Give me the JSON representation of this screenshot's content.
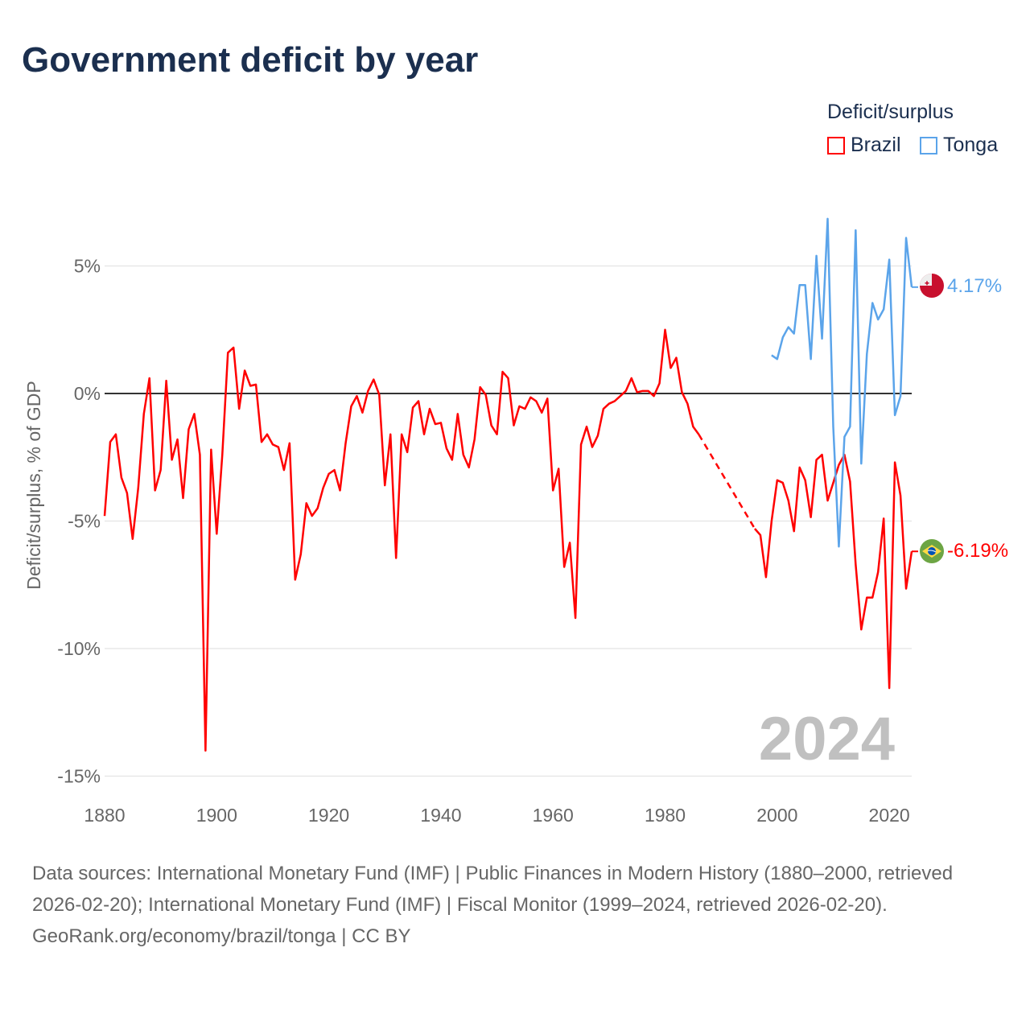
{
  "title": "Government deficit by year",
  "legend": {
    "title": "Deficit/surplus",
    "items": [
      {
        "label": "Brazil",
        "color": "#ff0000"
      },
      {
        "label": "Tonga",
        "color": "#5ba4ea"
      }
    ]
  },
  "watermark_year": "2024",
  "footer": {
    "sources": "Data sources: International Monetary Fund (IMF) | Public Finances in Modern History (1880–2000, retrieved 2026-02-20); International Monetary Fund (IMF) | Fiscal Monitor (1999–2024, retrieved 2026-02-20).",
    "credit": "GeoRank.org/economy/brazil/tonga | CC BY"
  },
  "chart_data": {
    "type": "line",
    "title": "Government deficit by year",
    "xlabel": "",
    "ylabel": "Deficit/surplus, % of GDP",
    "xlim": [
      1880,
      2024
    ],
    "ylim": [
      -15,
      7
    ],
    "x_ticks": [
      1880,
      1900,
      1920,
      1940,
      1960,
      1980,
      2000,
      2020
    ],
    "x_tick_labels": [
      "1880",
      "1900",
      "1920",
      "1940",
      "1960",
      "1980",
      "2000",
      "2020"
    ],
    "y_ticks": [
      5,
      0,
      -5,
      -10,
      -15
    ],
    "y_tick_labels": [
      "5%",
      "0%",
      "-5%",
      "-10%",
      "-15%"
    ],
    "grid": true,
    "legend_position": "top-right",
    "series": [
      {
        "name": "Brazil",
        "color": "#ff0000",
        "start_year": 1880,
        "end_label": "-6.19%",
        "flag": "brazil-flag",
        "values": [
          -4.8,
          -1.9,
          -1.6,
          -3.3,
          -3.9,
          -5.7,
          -3.7,
          -0.8,
          0.6,
          -3.8,
          -3.0,
          0.5,
          -2.6,
          -1.8,
          -4.1,
          -1.4,
          -0.8,
          -2.4,
          -14.0,
          -2.2,
          -5.5,
          -2.4,
          1.6,
          1.8,
          -0.6,
          0.9,
          0.3,
          0.35,
          -1.9,
          -1.6,
          -2.0,
          -2.1,
          -3.0,
          -1.95,
          -7.3,
          -6.3,
          -4.3,
          -4.8,
          -4.5,
          -3.7,
          -3.15,
          -3.0,
          -3.8,
          -1.95,
          -0.5,
          -0.1,
          -0.75,
          0.1,
          0.55,
          -0.05,
          -3.6,
          -1.6,
          -6.45,
          -1.6,
          -2.3,
          -0.55,
          -0.3,
          -1.6,
          -0.6,
          -1.2,
          -1.15,
          -2.15,
          -2.6,
          -0.8,
          -2.4,
          -2.9,
          -1.8,
          0.25,
          -0.05,
          -1.25,
          -1.6,
          0.85,
          0.6,
          -1.25,
          -0.5,
          -0.6,
          -0.15,
          -0.3,
          -0.75,
          -0.2,
          -3.8,
          -2.95,
          -6.8,
          -5.85,
          -8.8,
          -2.0,
          -1.3,
          -2.1,
          -1.65,
          -0.6,
          -0.4,
          -0.3,
          -0.1,
          0.1,
          0.6,
          0.05,
          0.1,
          0.1,
          -0.1,
          0.4,
          2.5,
          1.0,
          1.4,
          0.05,
          -0.4,
          -1.3,
          -1.6,
          null,
          null,
          null,
          null,
          null,
          null,
          null,
          null,
          null,
          -5.3,
          -5.55,
          -7.2,
          -5.0,
          -3.4,
          -3.5,
          -4.2,
          -5.4,
          -2.9,
          -3.4,
          -4.85,
          -2.6,
          -2.4,
          -4.2,
          -3.5,
          -2.8,
          -2.4,
          -3.45,
          -6.7,
          -9.25,
          -8.0,
          -8.0,
          -7.0,
          -4.9,
          -11.55,
          -2.7,
          -4.0,
          -7.65,
          -6.19
        ]
      },
      {
        "name": "Tonga",
        "color": "#5ba4ea",
        "start_year": 1999,
        "end_label": "4.17%",
        "flag": "tonga-flag",
        "values": [
          1.5,
          1.35,
          2.2,
          2.6,
          2.35,
          4.25,
          4.25,
          1.35,
          5.4,
          2.15,
          6.85,
          -1.3,
          -6.0,
          -1.7,
          -1.3,
          6.4,
          -2.75,
          1.55,
          3.55,
          2.9,
          3.3,
          5.25,
          -0.85,
          -0.1,
          6.1,
          4.17
        ]
      }
    ]
  }
}
